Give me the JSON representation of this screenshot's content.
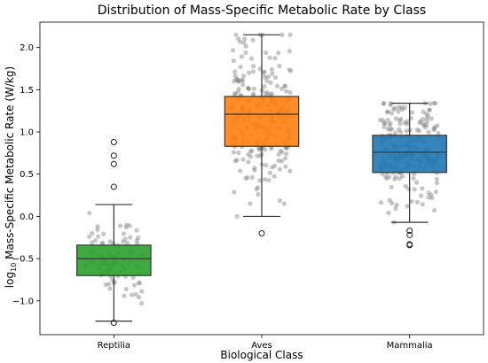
{
  "chart_data": {
    "type": "box",
    "title": "Distribution of Mass-Specific Metabolic Rate by Class",
    "xlabel": "Biological Class",
    "ylabel_main": "log",
    "ylabel_sub": "10",
    "ylabel_rest": " Mass-Specific Metabolic Rate (W/kg)",
    "ylim": [
      -1.4,
      2.3
    ],
    "yticks": [
      -1.0,
      -0.5,
      0.0,
      0.5,
      1.0,
      1.5,
      2.0
    ],
    "ytick_labels": [
      "−1.0",
      "−0.5",
      "0.0",
      "0.5",
      "1.0",
      "1.5",
      "2.0"
    ],
    "categories": [
      "Reptilia",
      "Aves",
      "Mammalia"
    ],
    "colors": {
      "Reptilia": "#2ca02c",
      "Aves": "#ff7f0e",
      "Mammalia": "#1f77b4",
      "points": "#808080"
    },
    "boxes": [
      {
        "name": "Reptilia",
        "whisker_low": -1.24,
        "q1": -0.7,
        "median": -0.5,
        "q3": -0.34,
        "whisker_high": 0.14,
        "outliers": [
          -1.26,
          0.35,
          0.62,
          0.72,
          0.88
        ]
      },
      {
        "name": "Aves",
        "whisker_low": 0.0,
        "q1": 0.83,
        "median": 1.21,
        "q3": 1.42,
        "whisker_high": 2.15,
        "outliers": [
          -0.2
        ]
      },
      {
        "name": "Mammalia",
        "whisker_low": -0.07,
        "q1": 0.52,
        "median": 0.76,
        "q3": 0.96,
        "whisker_high": 1.34,
        "outliers": [
          -0.17,
          -0.22,
          -0.33,
          -0.34
        ]
      }
    ],
    "grid": false
  }
}
